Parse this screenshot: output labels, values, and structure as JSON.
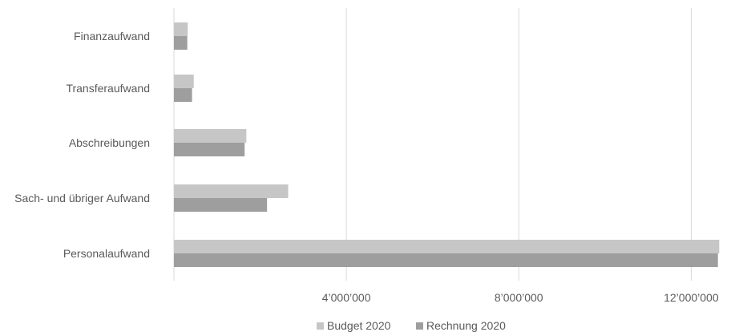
{
  "chart_data": {
    "type": "bar",
    "orientation": "horizontal",
    "categories": [
      "Finanzaufwand",
      "Transferaufwand",
      "Abschreibungen",
      "Sach- und übriger Aufwand",
      "Personalaufwand"
    ],
    "series": [
      {
        "name": "Budget 2020",
        "color": "#c6c6c6",
        "values": [
          320000,
          460000,
          1680000,
          2650000,
          12650000
        ]
      },
      {
        "name": "Rechnung 2020",
        "color": "#9e9e9e",
        "values": [
          310000,
          420000,
          1640000,
          2160000,
          12620000
        ]
      }
    ],
    "xticks": [
      4000000,
      8000000,
      12000000
    ],
    "xtick_labels": [
      "4’000’000",
      "8’000’000",
      "12’000’000"
    ],
    "xlim": [
      0,
      12700000
    ],
    "grid": true,
    "legend_position": "bottom-center"
  }
}
